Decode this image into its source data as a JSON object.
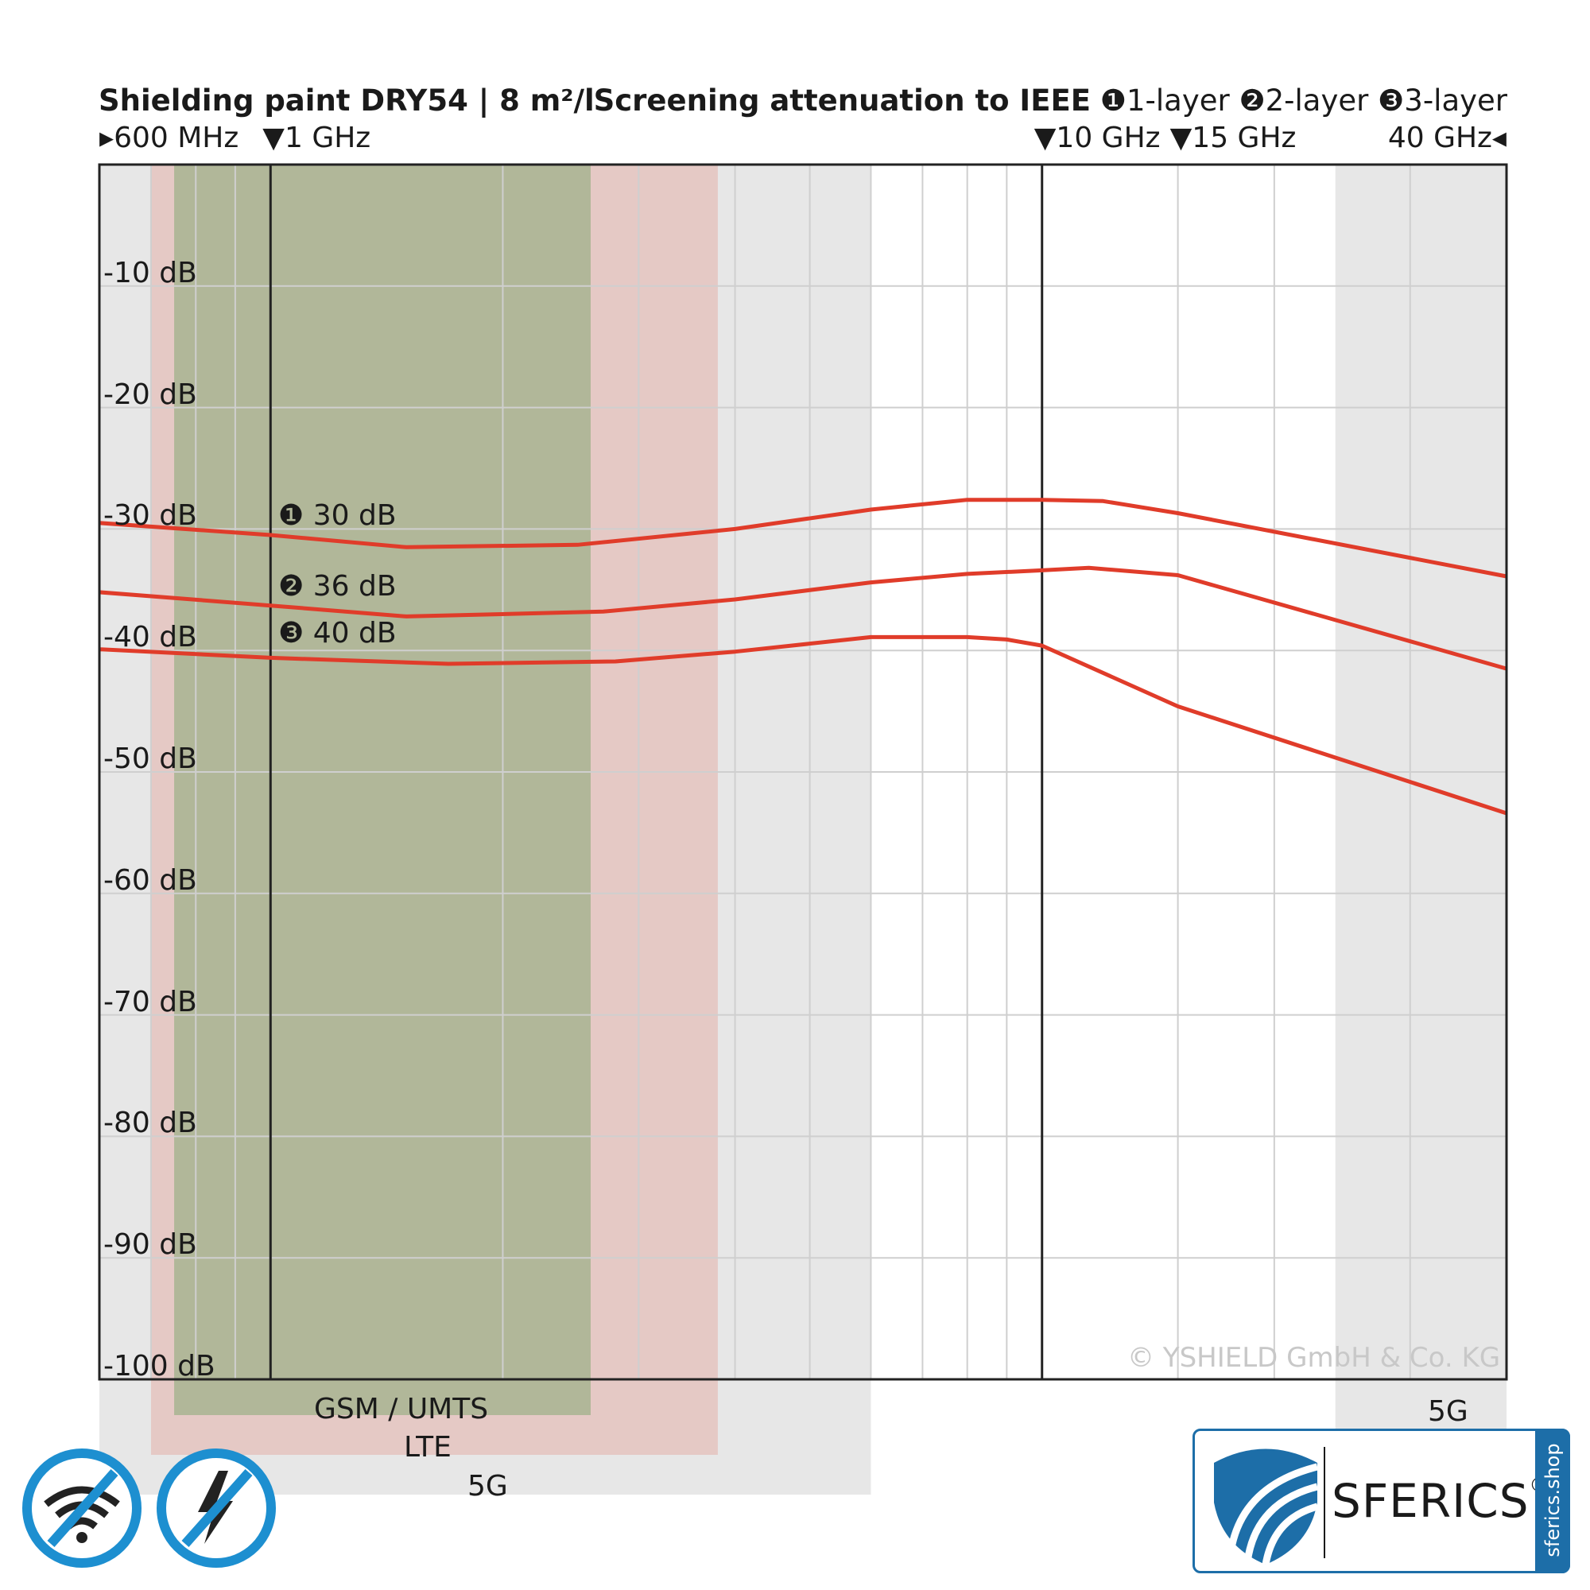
{
  "header": {
    "title_left": "Shielding paint DRY54 | 8 m²/l",
    "title_right_bold": "Screening attenuation to IEEE",
    "legend": [
      {
        "marker": "❶",
        "label": "1-layer"
      },
      {
        "marker": "❷",
        "label": "2-layer"
      },
      {
        "marker": "❸",
        "label": "3-layer"
      }
    ]
  },
  "chart_data": {
    "type": "line",
    "x_scale": "log",
    "x_unit": "GHz",
    "xlim": [
      0.6,
      40
    ],
    "ylim": [
      -100,
      0
    ],
    "grid": true,
    "legend_placement": "top-right",
    "top_ticks": [
      {
        "text": "▸600 MHz",
        "x": 0.6
      },
      {
        "text": "▼1 GHz",
        "x": 1
      },
      {
        "text": "▼10 GHz",
        "x": 10
      },
      {
        "text": "▼15 GHz",
        "x": 15
      },
      {
        "text": "40 GHz◂",
        "x": 40
      }
    ],
    "y_ticks": [
      {
        "text": "-10 dB",
        "value": -10
      },
      {
        "text": "-20 dB",
        "value": -20
      },
      {
        "text": "-30 dB",
        "value": -30
      },
      {
        "text": "-40 dB",
        "value": -40
      },
      {
        "text": "-50 dB",
        "value": -50
      },
      {
        "text": "-60 dB",
        "value": -60
      },
      {
        "text": "-70 dB",
        "value": -70
      },
      {
        "text": "-80 dB",
        "value": -80
      },
      {
        "text": "-90 dB",
        "value": -90
      },
      {
        "text": "-100 dB",
        "value": -100
      }
    ],
    "series": [
      {
        "name": "1-layer",
        "color": "#e03c2a",
        "points": [
          [
            0.6,
            -29.5
          ],
          [
            1,
            -30.5
          ],
          [
            1.5,
            -31.5
          ],
          [
            2.5,
            -31.3
          ],
          [
            4,
            -30
          ],
          [
            6,
            -28.4
          ],
          [
            8,
            -27.6
          ],
          [
            10,
            -27.6
          ],
          [
            12,
            -27.7
          ],
          [
            15,
            -28.7
          ],
          [
            40,
            -33.9
          ]
        ]
      },
      {
        "name": "2-layer",
        "color": "#e03c2a",
        "points": [
          [
            0.6,
            -35.2
          ],
          [
            1,
            -36.3
          ],
          [
            1.5,
            -37.2
          ],
          [
            2.7,
            -36.8
          ],
          [
            4,
            -35.8
          ],
          [
            6,
            -34.4
          ],
          [
            8,
            -33.7
          ],
          [
            10,
            -33.4
          ],
          [
            11.5,
            -33.2
          ],
          [
            15,
            -33.8
          ],
          [
            40,
            -41.5
          ]
        ]
      },
      {
        "name": "3-layer",
        "color": "#e03c2a",
        "points": [
          [
            0.6,
            -39.9
          ],
          [
            1,
            -40.6
          ],
          [
            1.7,
            -41.1
          ],
          [
            2.8,
            -40.9
          ],
          [
            4,
            -40.1
          ],
          [
            6,
            -38.9
          ],
          [
            8,
            -38.9
          ],
          [
            9,
            -39.1
          ],
          [
            10,
            -39.6
          ],
          [
            15,
            -44.6
          ],
          [
            40,
            -53.4
          ]
        ]
      }
    ],
    "annotations": [
      {
        "marker": "❶",
        "text": "30 dB",
        "series": 0
      },
      {
        "marker": "❷",
        "text": "36 dB",
        "series": 1
      },
      {
        "marker": "❸",
        "text": "40 dB",
        "series": 2
      }
    ],
    "bands": [
      {
        "label": "GSM / UMTS",
        "from": 0.75,
        "to": 2.6,
        "color": "#9fb08a"
      },
      {
        "label": "LTE",
        "from": 0.7,
        "to": 3.8,
        "color": "#e3b0aa"
      },
      {
        "label": "5G",
        "from": 0.6,
        "to": 6,
        "color": "#d4d4d4"
      },
      {
        "label": "5G",
        "from": 24,
        "to": 40,
        "color": "#d4d4d4"
      }
    ]
  },
  "copyright": "© YSHIELD GmbH & Co. KG",
  "icons": [
    "wifi-blocked-icon",
    "electric-field-blocked-icon",
    "shield-logo-icon"
  ],
  "logo": {
    "name": "SFERICS",
    "reg": "®",
    "side": "sferics.shop"
  },
  "colors": {
    "curve": "#e03c2a",
    "icon_blue": "#1d8fd0",
    "logo_blue": "#1d6ea8"
  }
}
